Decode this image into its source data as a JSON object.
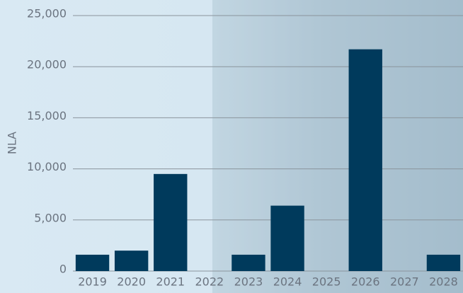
{
  "chart_data": {
    "type": "bar",
    "y_label": "NLA",
    "categories": [
      "2019",
      "2020",
      "2021",
      "2022",
      "2023",
      "2024",
      "2025",
      "2026",
      "2027",
      "2028"
    ],
    "values": [
      1600,
      2000,
      9500,
      0,
      1600,
      6400,
      0,
      21700,
      0,
      1600
    ],
    "color": "#003a5c",
    "ylim": [
      0,
      25000
    ],
    "yticks": [
      0,
      {
        "value": 5000,
        "label": "5,000"
      },
      {
        "value": 10000,
        "label": "10,000"
      },
      {
        "value": 15000,
        "label": "15,000"
      },
      {
        "value": 20000,
        "label": "20,000"
      },
      {
        "value": 25000,
        "label": "25,000"
      }
    ],
    "grid": true
  }
}
